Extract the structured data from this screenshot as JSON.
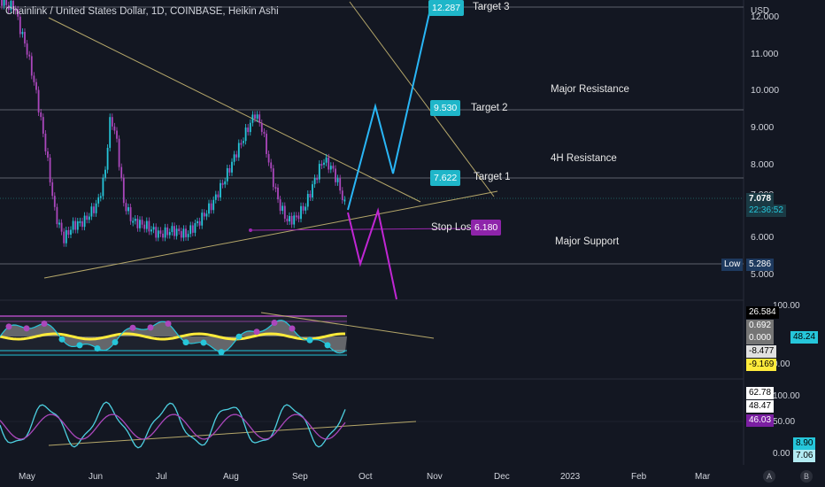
{
  "header": {
    "title": "Chainlink / United States Dollar, 1D, COINBASE, Heikin Ashi",
    "currency": "USD"
  },
  "price_axis": {
    "ticks": [
      "12.000",
      "11.000",
      "10.000",
      "9.000",
      "8.000",
      "7.000",
      "6.000",
      "5.000"
    ],
    "current_price": "7.078",
    "countdown": "22:36:52",
    "low_label": "Low",
    "low_value": "5.286"
  },
  "annotations": {
    "target3_value": "12.287",
    "target3_label": "Target 3",
    "target2_value": "9.530",
    "target2_label": "Target 2",
    "target1_value": "7.622",
    "target1_label": "Target 1",
    "stop_label": "Stop Loss",
    "stop_value": "6.180",
    "major_resistance": "Major Resistance",
    "h4_resistance": "4H Resistance",
    "major_support": "Major Support"
  },
  "indicator1": {
    "axis_top": "100.00",
    "axis_bottom": "0.00",
    "values": [
      "26.584",
      "0.692",
      "0.000",
      "-8.477",
      "-9.169"
    ],
    "side_value": "48.24"
  },
  "indicator2": {
    "axis_top": "100.00",
    "axis_mid": "50.00",
    "axis_bottom": "0.00",
    "values": [
      "62.78",
      "48.47",
      "46.03"
    ],
    "side_values": [
      "8.90",
      "7.06"
    ]
  },
  "time_axis": {
    "months": [
      "May",
      "Jun",
      "Jul",
      "Aug",
      "Sep",
      "Oct",
      "Nov",
      "Dec",
      "2023",
      "Feb",
      "Mar"
    ]
  },
  "corner_icons": [
    "A",
    "B"
  ],
  "colors": {
    "background": "#131722",
    "bull": "#26c6da",
    "bear": "#ab47bc",
    "projection_up": "#29b6f6",
    "projection_down": "#c026d3",
    "trendline": "#b5a76a"
  }
}
